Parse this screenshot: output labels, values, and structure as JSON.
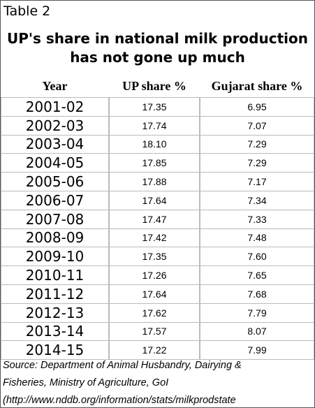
{
  "header": {
    "label": "Table 2",
    "title": [
      "UP's share in national milk production",
      "has not gone up much"
    ]
  },
  "table": {
    "columns": [
      "Year",
      "UP share %",
      "Gujarat share %"
    ],
    "rows": [
      [
        "2001-02",
        "17.35",
        "6.95"
      ],
      [
        "2002-03",
        "17.74",
        "7.07"
      ],
      [
        "2003-04",
        "18.10",
        "7.29"
      ],
      [
        "2004-05",
        "17.85",
        "7.29"
      ],
      [
        "2005-06",
        "17.88",
        "7.17"
      ],
      [
        "2006-07",
        "17.64",
        "7.34"
      ],
      [
        "2007-08",
        "17.47",
        "7.33"
      ],
      [
        "2008-09",
        "17.42",
        "7.48"
      ],
      [
        "2009-10",
        "17.35",
        "7.60"
      ],
      [
        "2010-11",
        "17.26",
        "7.65"
      ],
      [
        "2011-12",
        "17.64",
        "7.68"
      ],
      [
        "2012-13",
        "17.62",
        "7.79"
      ],
      [
        "2013-14",
        "17.57",
        "8.07"
      ],
      [
        "2014-15",
        "17.22",
        "7.99"
      ]
    ]
  },
  "source": [
    "Source: Department of Animal Husbandry, Dairying &",
    "Fisheries, Ministry of Agriculture, GoI",
    "(http://www.nddb.org/information/stats/milkprodstate"
  ]
}
